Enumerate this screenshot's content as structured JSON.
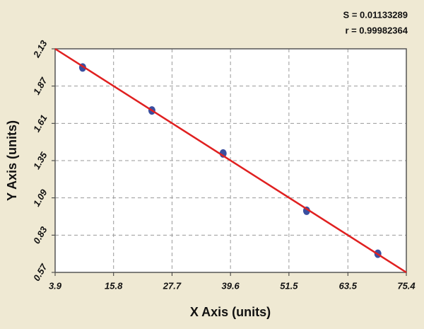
{
  "chart_data": {
    "type": "scatter",
    "x_label": "X Axis (units)",
    "y_label": "Y Axis (units)",
    "annotations": [
      "S = 0.01133289",
      "r = 0.99982364"
    ],
    "x": [
      9.5,
      23.6,
      38.1,
      55.1,
      69.6
    ],
    "values": [
      2.0,
      1.7,
      1.4,
      1.0,
      0.7
    ],
    "color": "#3a4fa0",
    "fit": {
      "x": [
        3.9,
        75.4
      ],
      "y": [
        2.13,
        0.57
      ],
      "color": "#e02020"
    },
    "xlim": [
      3.9,
      75.4
    ],
    "xticks": [
      3.9,
      15.8,
      27.7,
      39.6,
      51.5,
      63.5,
      75.4
    ],
    "ylim": [
      0.57,
      2.13
    ],
    "yticks": [
      0.57,
      0.83,
      1.09,
      1.35,
      1.61,
      1.87,
      2.13
    ],
    "grid": true
  }
}
